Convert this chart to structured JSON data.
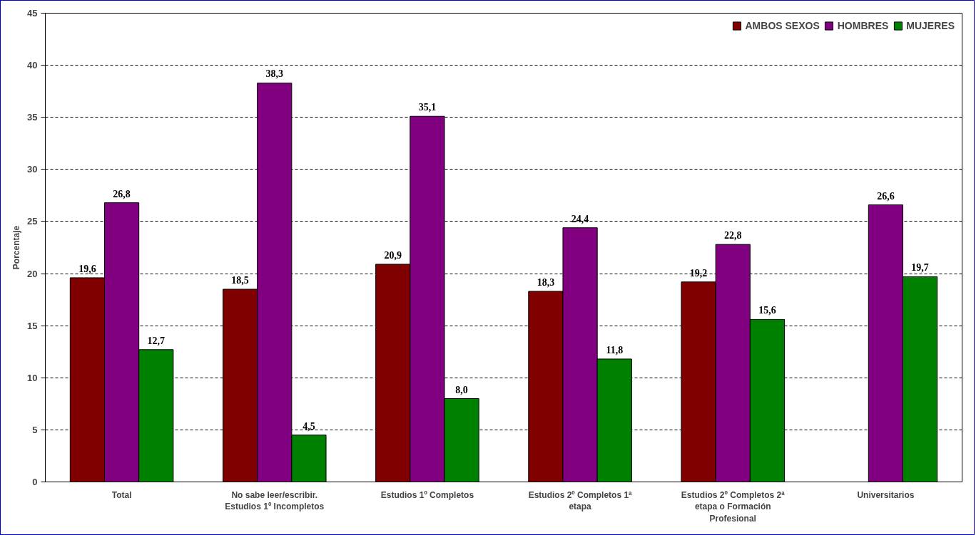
{
  "chart_data": {
    "type": "bar",
    "ylabel": "Porcentaje",
    "categories": [
      "Total",
      "No sabe leer/escribir. Estudios 1º Incompletos",
      "Estudios 1º Completos",
      "Estudios 2º Completos 1ª etapa",
      "Estudios 2º Completos 2ª etapa o Formación Profesional",
      "Universitarios"
    ],
    "series": [
      {
        "name": "AMBOS SEXOS",
        "color": "#800000",
        "values": [
          19.6,
          18.5,
          20.9,
          18.3,
          19.2,
          null
        ],
        "value_labels": [
          "19,6",
          "18,5",
          "20,9",
          "18,3",
          "19,2",
          null
        ]
      },
      {
        "name": "HOMBRES",
        "color": "#800080",
        "values": [
          26.8,
          38.3,
          35.1,
          24.4,
          22.8,
          26.6
        ],
        "value_labels": [
          "26,8",
          "38,3",
          "35,1",
          "24,4",
          "22,8",
          "26,6"
        ]
      },
      {
        "name": "MUJERES",
        "color": "#008000",
        "values": [
          12.7,
          4.5,
          8.0,
          11.8,
          15.6,
          19.7
        ],
        "value_labels": [
          "12,7",
          "4,5",
          "8,0",
          "11,8",
          "15,6",
          "19,7"
        ]
      }
    ],
    "ylim": [
      0,
      45
    ],
    "yticks": [
      0,
      5,
      10,
      15,
      20,
      25,
      30,
      35,
      40,
      45
    ],
    "grid": "y",
    "legend": "top right"
  }
}
